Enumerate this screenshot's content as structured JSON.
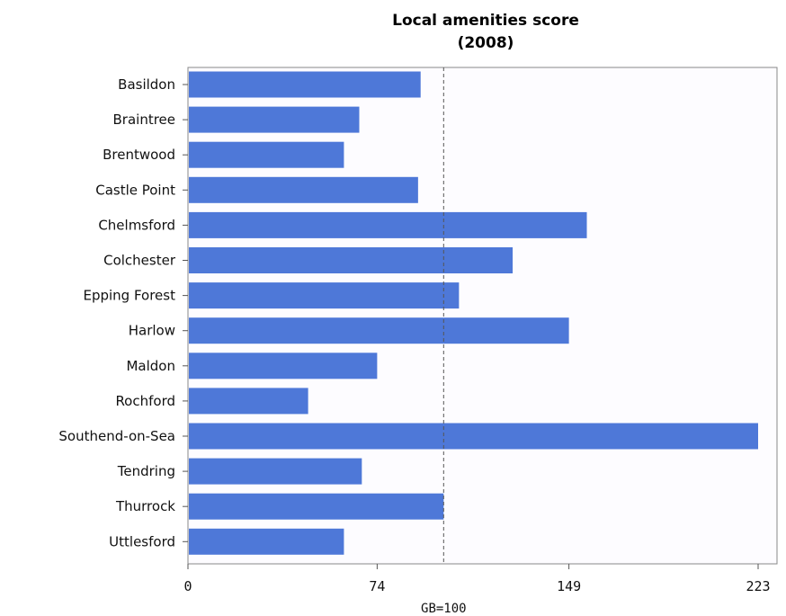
{
  "chart_data": {
    "type": "bar",
    "orientation": "horizontal",
    "title_line1": "Local amenities score",
    "title_line2": "(2008)",
    "categories": [
      "Basildon",
      "Braintree",
      "Brentwood",
      "Castle Point",
      "Chelmsford",
      "Colchester",
      "Epping Forest",
      "Harlow",
      "Maldon",
      "Rochford",
      "Southend-on-Sea",
      "Tendring",
      "Thurrock",
      "Uttlesford"
    ],
    "values": [
      91,
      67,
      61,
      90,
      156,
      127,
      106,
      149,
      74,
      47,
      223,
      68,
      100,
      61
    ],
    "xlim": [
      0,
      223
    ],
    "xticks": [
      "0",
      "74",
      "149",
      "223"
    ],
    "reference_value": 100,
    "reference_label": "GB=100",
    "bar_color": "#4e78d8",
    "grid": false
  }
}
